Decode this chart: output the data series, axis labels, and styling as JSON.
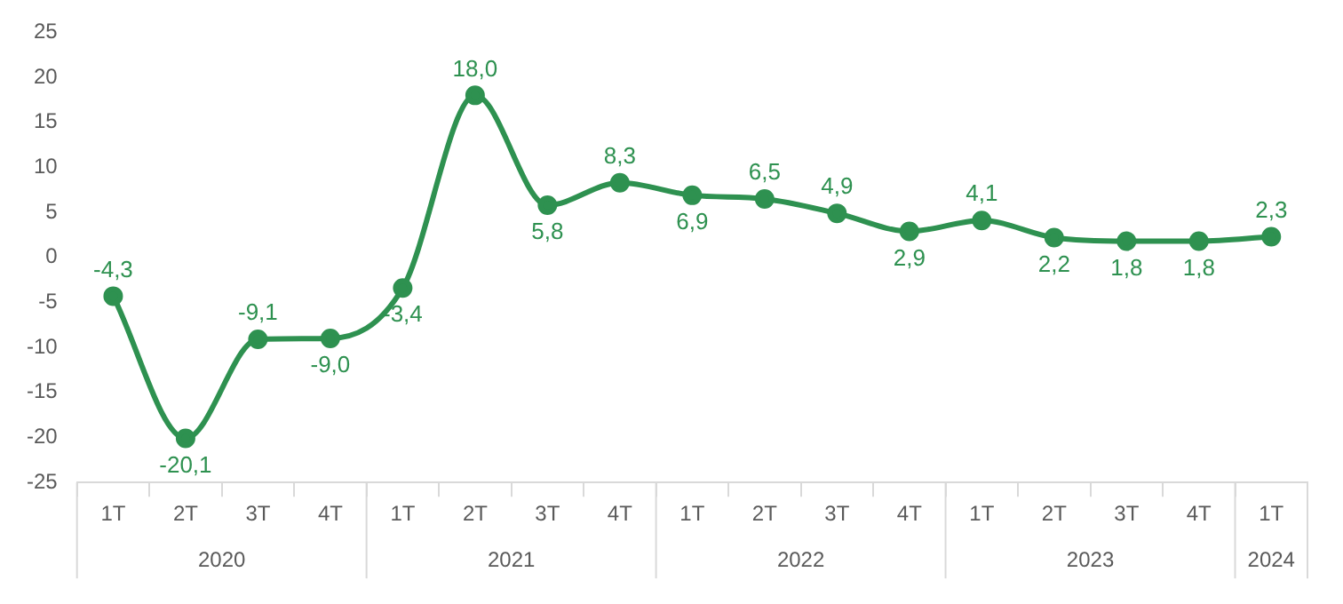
{
  "chart_data": {
    "type": "line",
    "categories": [
      "1T",
      "2T",
      "3T",
      "4T",
      "1T",
      "2T",
      "3T",
      "4T",
      "1T",
      "2T",
      "3T",
      "4T",
      "1T",
      "2T",
      "3T",
      "4T",
      "1T"
    ],
    "series": [
      {
        "color": "#2e9150",
        "values": [
          -4.3,
          -20.1,
          -9.1,
          -9.0,
          -3.4,
          18.0,
          5.8,
          8.3,
          6.9,
          6.5,
          4.9,
          2.9,
          4.1,
          2.2,
          1.8,
          1.8,
          2.3
        ],
        "value_labels": [
          "-4,3",
          "-20,1",
          "-9,1",
          "-9,0",
          "-3,4",
          "18,0",
          "5,8",
          "8,3",
          "6,9",
          "6,5",
          "4,9",
          "2,9",
          "4,1",
          "2,2",
          "1,8",
          "1,8",
          "2,3"
        ]
      }
    ],
    "annotations": [
      "2020",
      "2021",
      "2022",
      "2023",
      "2024"
    ],
    "ylim": [
      -25,
      25
    ],
    "yticks": [
      -25,
      -20,
      -15,
      -10,
      -5,
      0,
      5,
      10,
      15,
      20,
      25
    ],
    "grid": false,
    "legend": false,
    "marker": "circle",
    "line_style": "solid"
  }
}
